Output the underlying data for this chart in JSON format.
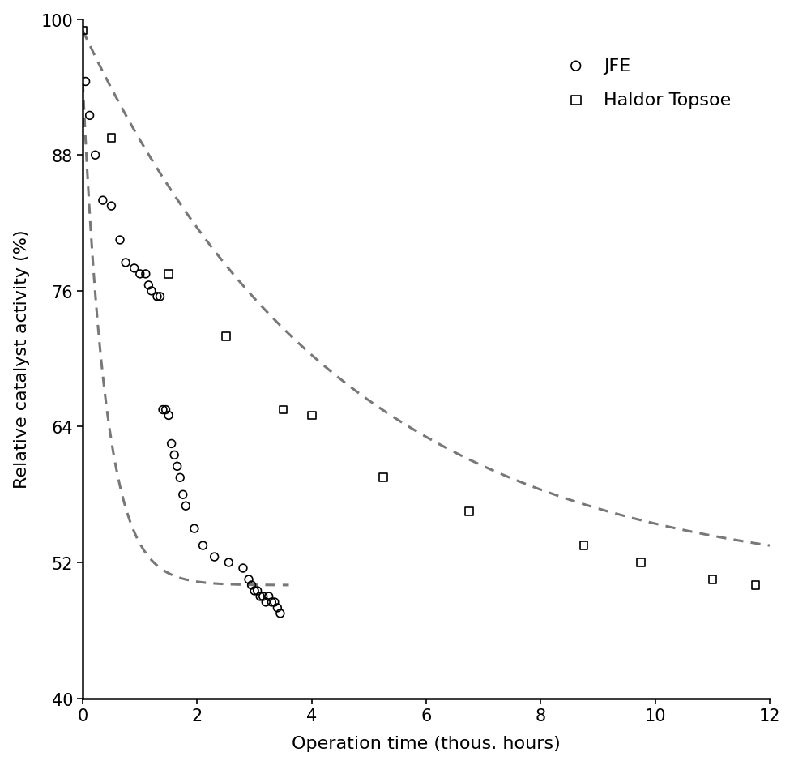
{
  "title": "",
  "xlabel": "Operation time (thous. hours)",
  "ylabel": "Relative catalyst activity (%)",
  "xlim": [
    0,
    12
  ],
  "ylim": [
    40,
    100
  ],
  "xticks": [
    0,
    2,
    4,
    6,
    8,
    10,
    12
  ],
  "yticks": [
    40,
    52,
    64,
    76,
    88,
    100
  ],
  "background_color": "#ffffff",
  "jfe_x": [
    0.05,
    0.12,
    0.22,
    0.35,
    0.5,
    0.65,
    0.75,
    0.9,
    1.0,
    1.1,
    1.15,
    1.2,
    1.3,
    1.35,
    1.4,
    1.45,
    1.5,
    1.55,
    1.6,
    1.65,
    1.7,
    1.75,
    1.8,
    1.95,
    2.1,
    2.3,
    2.55,
    2.8,
    2.9,
    2.95,
    3.0,
    3.05,
    3.1,
    3.15,
    3.2,
    3.25,
    3.3,
    3.35,
    3.4,
    3.45
  ],
  "jfe_y": [
    94.5,
    91.5,
    88.0,
    84.0,
    83.5,
    80.5,
    78.5,
    78.0,
    77.5,
    77.5,
    76.5,
    76.0,
    75.5,
    75.5,
    65.5,
    65.5,
    65.0,
    62.5,
    61.5,
    60.5,
    59.5,
    58.0,
    57.0,
    55.0,
    53.5,
    52.5,
    52.0,
    51.5,
    50.5,
    50.0,
    49.5,
    49.5,
    49.0,
    49.0,
    48.5,
    49.0,
    48.5,
    48.5,
    48.0,
    47.5
  ],
  "haldor_x": [
    0.0,
    0.5,
    1.5,
    2.5,
    3.5,
    4.0,
    5.25,
    6.75,
    8.75,
    9.75,
    11.0,
    11.75
  ],
  "haldor_y": [
    99.0,
    89.5,
    77.5,
    72.0,
    65.5,
    65.0,
    59.5,
    56.5,
    53.5,
    52.0,
    50.5,
    50.0
  ],
  "curve_color": "#787878",
  "marker_color": "#000000",
  "marker_facecolor": "none",
  "marker_size": 7,
  "curve_linewidth": 2.2,
  "legend_labels": [
    "JFE",
    "Haldor Topsoe"
  ],
  "label_fontsize": 16,
  "tick_fontsize": 15,
  "legend_fontsize": 16,
  "jfe_curve_A": 50.0,
  "jfe_curve_B": 44.5,
  "jfe_curve_k": 2.5,
  "haldor_curve_A": 50.0,
  "haldor_curve_B": 49.0,
  "haldor_curve_k": 0.22
}
